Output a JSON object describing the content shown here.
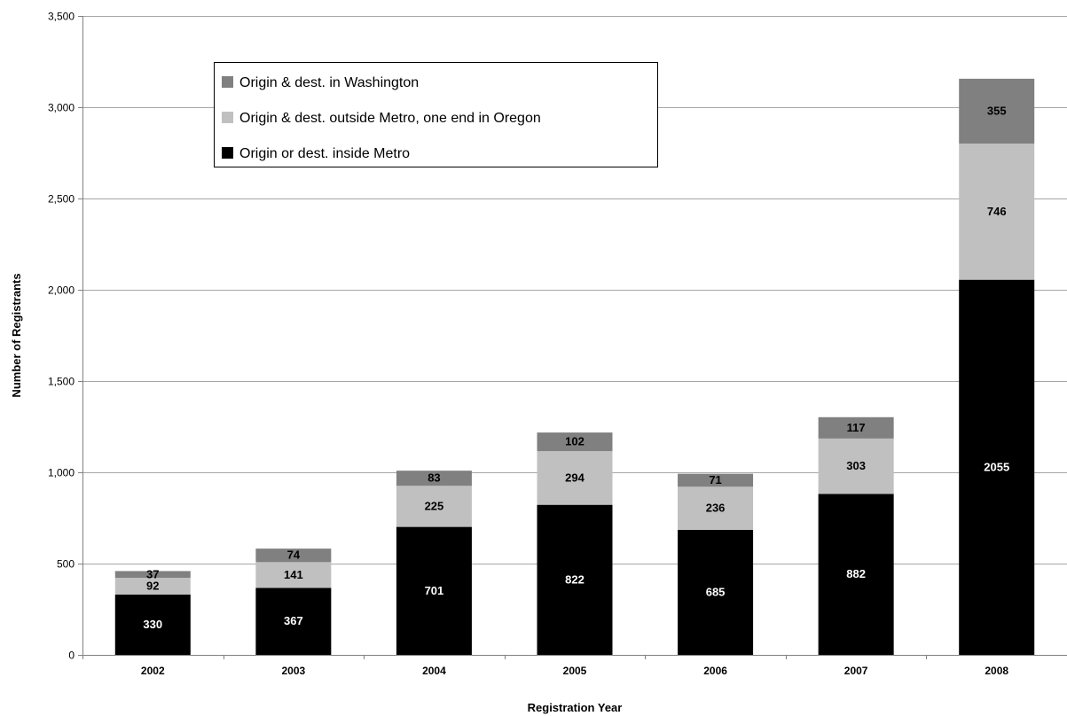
{
  "chart_data": {
    "type": "bar",
    "stacked": true,
    "categories": [
      "2002",
      "2003",
      "2004",
      "2005",
      "2006",
      "2007",
      "2008"
    ],
    "series": [
      {
        "name": "Origin or dest. inside Metro",
        "color": "#000000",
        "label_color": "#ffffff",
        "values": [
          330,
          367,
          701,
          822,
          685,
          882,
          2055
        ]
      },
      {
        "name": "Origin & dest. outside Metro, one end in Oregon",
        "color": "#c0c0c0",
        "label_color": "#000000",
        "values": [
          92,
          141,
          225,
          294,
          236,
          303,
          746
        ]
      },
      {
        "name": "Origin & dest. in Washington",
        "color": "#808080",
        "label_color": "#000000",
        "values": [
          37,
          74,
          83,
          102,
          71,
          117,
          355
        ]
      }
    ],
    "xlabel": "Registration Year",
    "ylabel": "Number of Registrants",
    "ylim": [
      0,
      3500
    ],
    "yticks": [
      0,
      500,
      1000,
      1500,
      2000,
      2500,
      3000,
      3500
    ],
    "ytick_labels": [
      "0",
      "500",
      "1,000",
      "1,500",
      "2,000",
      "2,500",
      "3,000",
      "3,500"
    ],
    "grid": true,
    "legend_position": "top-left",
    "legend_order": [
      "Origin & dest. in Washington",
      "Origin & dest. outside Metro, one end in Oregon",
      "Origin or dest. inside Metro"
    ]
  }
}
